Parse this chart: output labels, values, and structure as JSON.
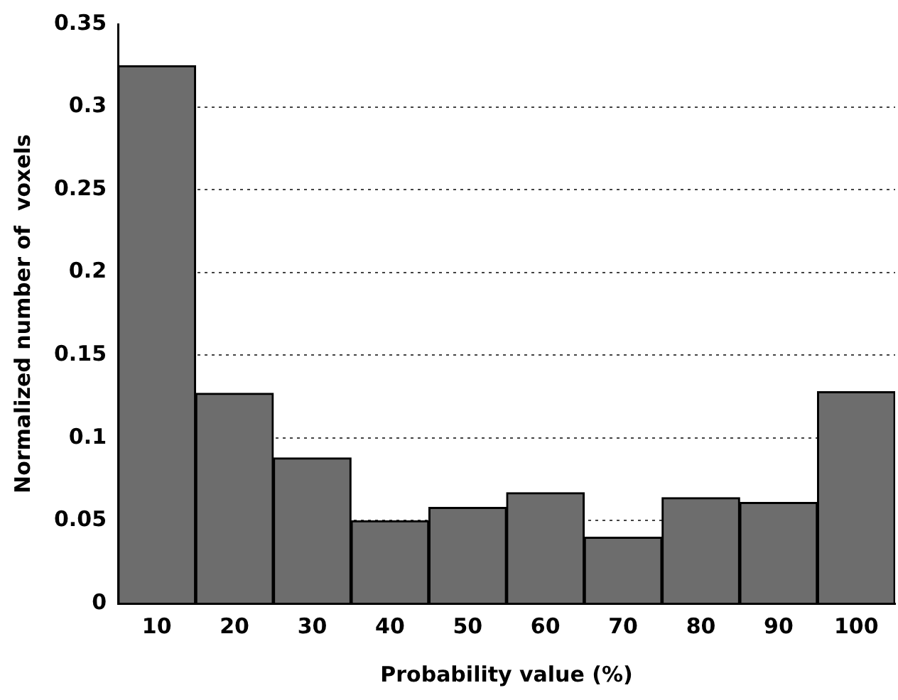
{
  "chart_data": {
    "type": "bar",
    "xlabel": "Probability value (%)",
    "ylabel": "Normalized number of  voxels",
    "categories": [
      "10",
      "20",
      "30",
      "40",
      "50",
      "60",
      "70",
      "80",
      "90",
      "100"
    ],
    "values": [
      0.325,
      0.127,
      0.088,
      0.05,
      0.058,
      0.067,
      0.04,
      0.064,
      0.061,
      0.128
    ],
    "color": "#6d6d6d",
    "ylim": [
      0,
      0.35
    ],
    "yticks": [
      0,
      0.05,
      0.1,
      0.15,
      0.2,
      0.25,
      0.3,
      0.35
    ],
    "grid": "y",
    "legend": false
  }
}
